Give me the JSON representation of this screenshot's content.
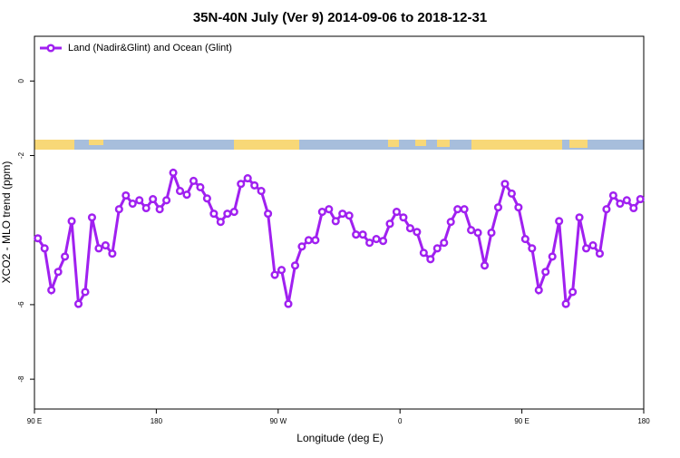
{
  "chart_data": {
    "type": "line",
    "title": "35N-40N July (Ver 9)   2014-09-06 to 2018-12-31",
    "x_label": "Longitude (deg E)",
    "y_label": "XCO2 - MLO trend (ppm)",
    "legend_position": "top-left",
    "xlim": [
      90,
      540
    ],
    "ylim": [
      -8.8,
      1.2
    ],
    "xticks": [
      {
        "value": 90,
        "label": "90 E"
      },
      180,
      {
        "value": 270,
        "label": "90 W"
      },
      {
        "value": 360,
        "label": "0"
      },
      {
        "value": 450,
        "label": "90 E"
      },
      {
        "value": 540,
        "label": "180"
      }
    ],
    "yticks": [
      0,
      -2,
      -6,
      -8
    ],
    "x": [
      92.5,
      97.5,
      102.5,
      107.5,
      112.5,
      117.5,
      122.5,
      127.5,
      132.5,
      137.5,
      142.5,
      147.5,
      152.5,
      157.5,
      162.5,
      167.5,
      172.5,
      177.5,
      182.5,
      187.5,
      192.5,
      197.5,
      202.5,
      207.5,
      212.5,
      217.5,
      222.5,
      227.5,
      232.5,
      237.5,
      242.5,
      247.5,
      252.5,
      257.5,
      262.5,
      267.5,
      272.5,
      277.5,
      282.5,
      287.5,
      292.5,
      297.5,
      302.5,
      307.5,
      312.5,
      317.5,
      322.5,
      327.5,
      332.5,
      337.5,
      342.5,
      347.5,
      352.5,
      357.5,
      362.5,
      367.5,
      372.5,
      377.5,
      382.5,
      387.5,
      392.5,
      397.5,
      402.5,
      407.5,
      412.5,
      417.5,
      422.5,
      427.5,
      432.5,
      437.5,
      442.5,
      447.5,
      452.5,
      457.5,
      462.5,
      467.5,
      472.5,
      477.5,
      482.5,
      487.5,
      492.5,
      497.5,
      502.5,
      507.5,
      512.5,
      517.5,
      522.5,
      527.5,
      532.5,
      537.5
    ],
    "series": [
      {
        "name": "Land (Nadir&Glint) and Ocean (Glint)",
        "color": "#a020f0",
        "values": [
          -4.22,
          -4.49,
          -5.61,
          -5.12,
          -4.71,
          -3.76,
          -5.98,
          -5.66,
          -3.66,
          -4.49,
          -4.41,
          -4.63,
          -3.44,
          -3.07,
          -3.29,
          -3.2,
          -3.41,
          -3.17,
          -3.44,
          -3.2,
          -2.46,
          -2.95,
          -3.05,
          -2.68,
          -2.85,
          -3.15,
          -3.56,
          -3.78,
          -3.56,
          -3.51,
          -2.76,
          -2.61,
          -2.8,
          -2.95,
          -3.56,
          -5.2,
          -5.07,
          -5.98,
          -4.95,
          -4.44,
          -4.27,
          -4.27,
          -3.51,
          -3.44,
          -3.76,
          -3.56,
          -3.61,
          -4.12,
          -4.12,
          -4.34,
          -4.24,
          -4.29,
          -3.83,
          -3.51,
          -3.66,
          -3.95,
          -4.05,
          -4.61,
          -4.78,
          -4.49,
          -4.34,
          -3.78,
          -3.44,
          -3.44,
          -4.0,
          -4.07,
          -4.95,
          -4.07,
          -3.39,
          -2.76,
          -3.02,
          -3.39,
          -4.24,
          -4.49,
          -5.61,
          -5.12,
          -4.71,
          -3.76,
          -5.98,
          -5.66,
          -3.66,
          -4.49,
          -4.41,
          -4.63,
          -3.44,
          -3.07,
          -3.29,
          -3.2,
          -3.41,
          -3.17
        ]
      }
    ]
  }
}
